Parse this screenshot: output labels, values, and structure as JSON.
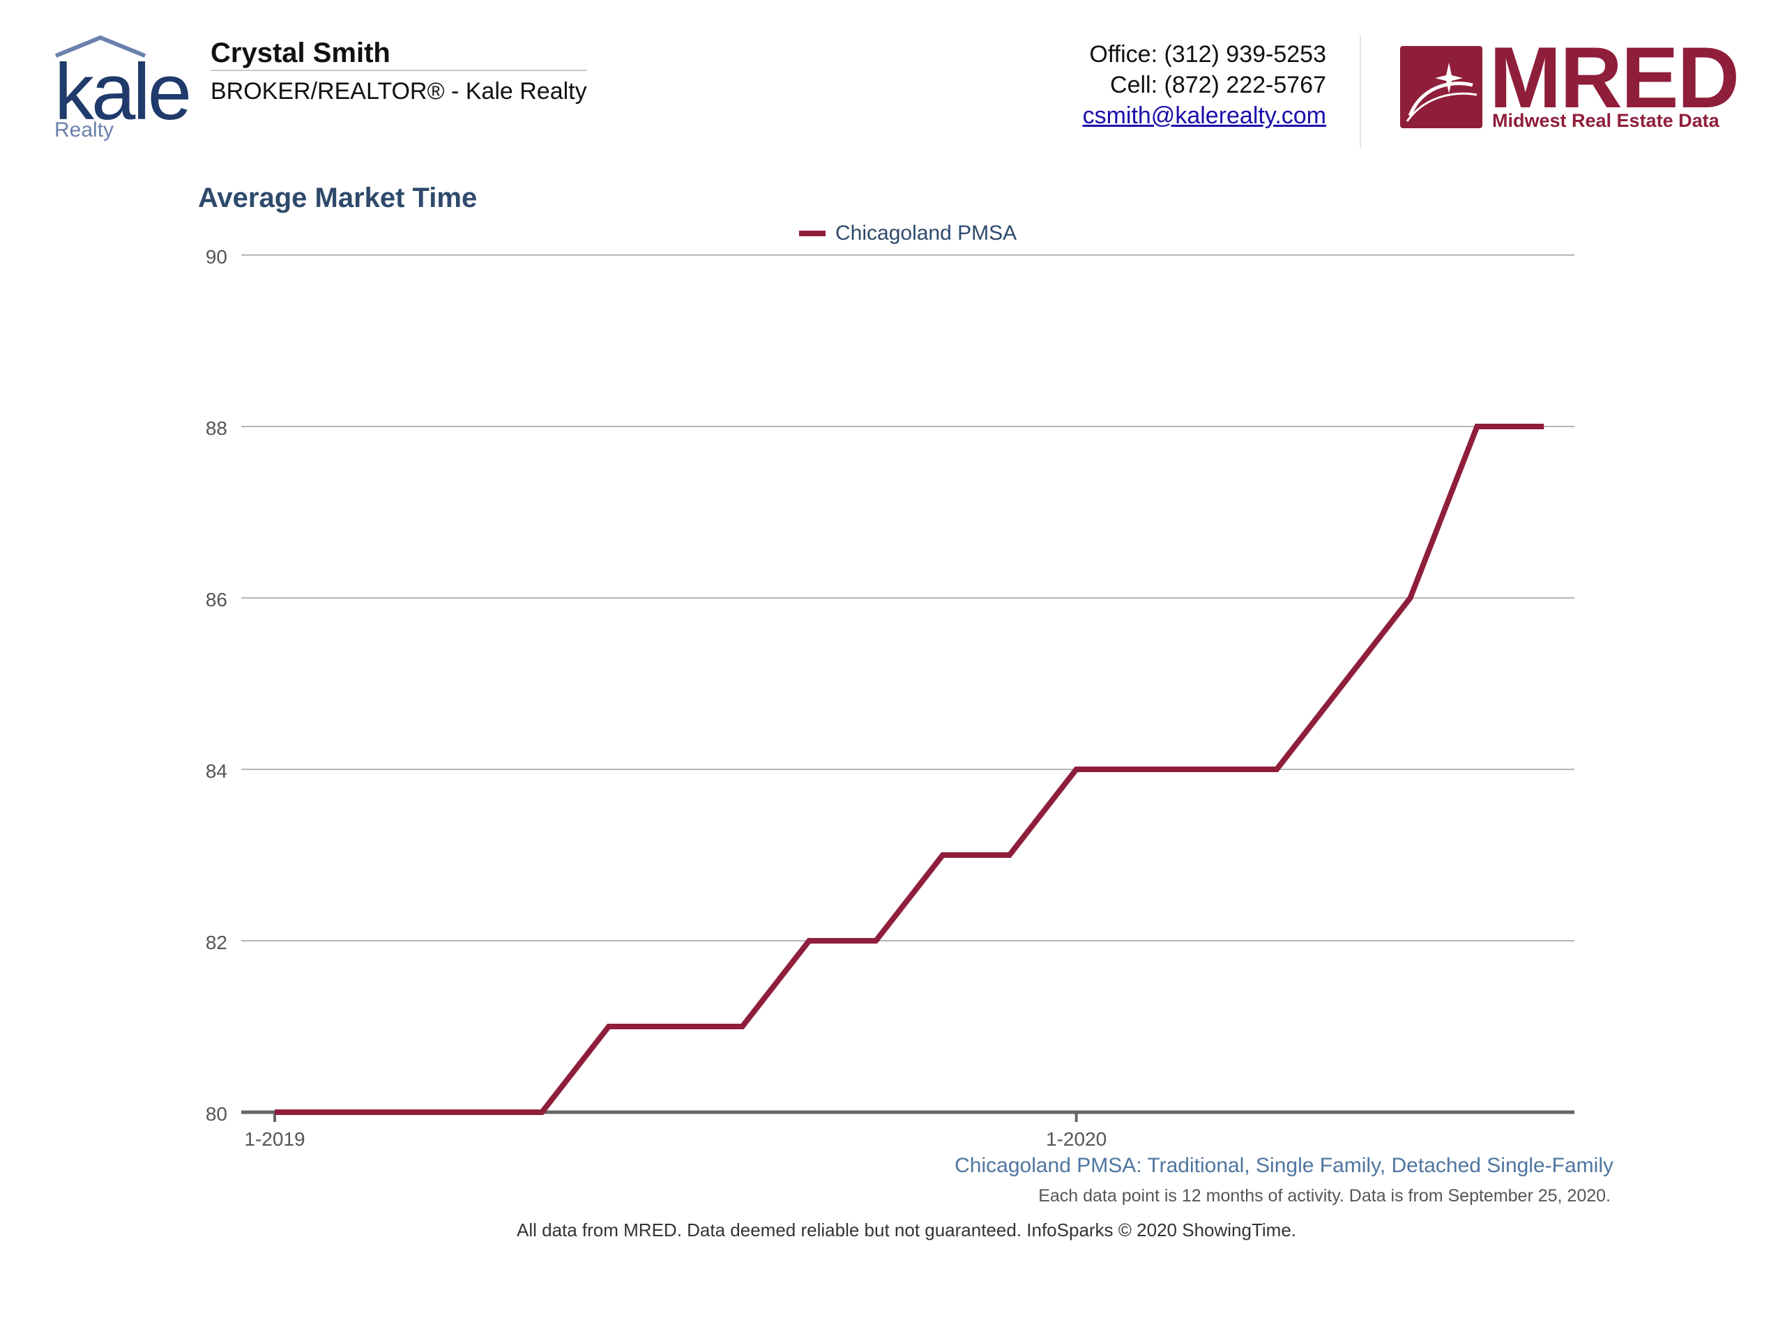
{
  "agent": {
    "name": "Crystal Smith",
    "title": "BROKER/REALTOR® - Kale Realty"
  },
  "brand": {
    "logo_word": "kale",
    "logo_sub": "Realty"
  },
  "contact": {
    "office": "Office: (312) 939-5253",
    "cell": "Cell: (872) 222-5767",
    "email": "csmith@kalerealty.com"
  },
  "mred": {
    "name": "MRED",
    "tagline": "Midwest Real Estate Data"
  },
  "colors": {
    "series": "#8f1e3b",
    "title": "#2e4a6b",
    "grid": "#b5b5b5",
    "axis": "#666666"
  },
  "chart_data": {
    "type": "line",
    "title": "Average Market Time",
    "series": [
      {
        "name": "Chicagoland PMSA",
        "x": [
          "2019-01",
          "2019-02",
          "2019-03",
          "2019-04",
          "2019-05",
          "2019-06",
          "2019-07",
          "2019-08",
          "2019-09",
          "2019-10",
          "2019-11",
          "2019-12",
          "2020-01",
          "2020-02",
          "2020-03",
          "2020-04",
          "2020-05",
          "2020-06",
          "2020-07",
          "2020-08",
          "2020-09"
        ],
        "values": [
          80,
          80,
          80,
          80,
          80,
          81,
          81,
          81,
          82,
          82,
          83,
          83,
          84,
          84,
          84,
          84,
          85,
          86,
          88,
          88,
          null
        ]
      }
    ],
    "x_ticks": [
      "1-2019",
      "1-2020"
    ],
    "y_ticks": [
      "80",
      "82",
      "84",
      "86",
      "88",
      "90"
    ],
    "ylim": [
      80,
      90
    ],
    "grid": true,
    "legend": "top-center",
    "caption": "Chicagoland PMSA: Traditional, Single Family, Detached Single-Family",
    "note": "Each data point is 12 months of activity. Data is from September 25, 2020.",
    "disclaimer": "All data from MRED. Data deemed reliable but not guaranteed. InfoSparks © 2020 ShowingTime."
  }
}
